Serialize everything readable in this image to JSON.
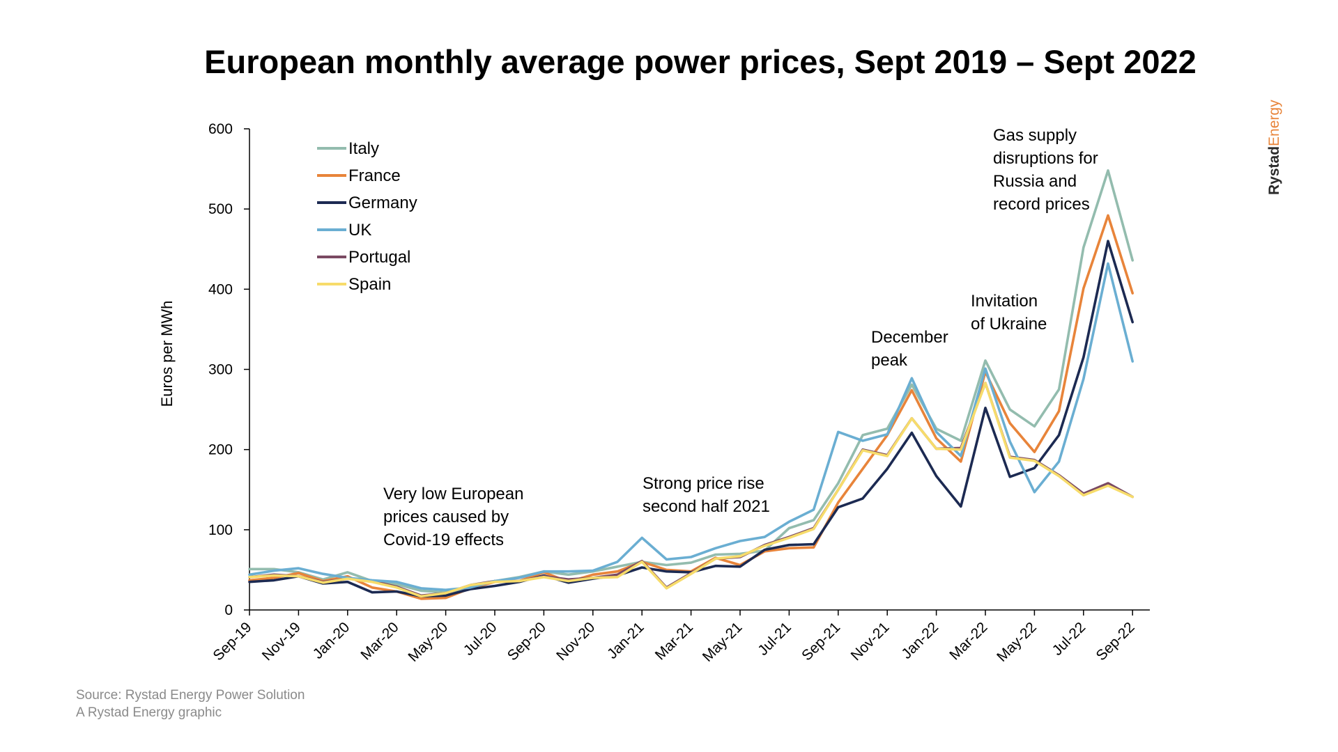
{
  "chart_data": {
    "type": "line",
    "title": "European monthly average power prices, Sept 2019 – Sept 2022",
    "ylabel": "Euros per MWh",
    "xlabel": "",
    "ylim": [
      0,
      600
    ],
    "yticks": [
      0,
      100,
      200,
      300,
      400,
      500,
      600
    ],
    "x": [
      "Sep-19",
      "Oct-19",
      "Nov-19",
      "Dec-19",
      "Jan-20",
      "Feb-20",
      "Mar-20",
      "Apr-20",
      "May-20",
      "Jun-20",
      "Jul-20",
      "Aug-20",
      "Sep-20",
      "Oct-20",
      "Nov-20",
      "Dec-20",
      "Jan-21",
      "Feb-21",
      "Mar-21",
      "Apr-21",
      "May-21",
      "Jun-21",
      "Jul-21",
      "Aug-21",
      "Sep-21",
      "Oct-21",
      "Nov-21",
      "Dec-21",
      "Jan-22",
      "Feb-22",
      "Mar-22",
      "Apr-22",
      "May-22",
      "Jun-22",
      "Jul-22",
      "Aug-22",
      "Sep-22"
    ],
    "xticks": [
      "Sep-19",
      "Nov-19",
      "Jan-20",
      "Mar-20",
      "May-20",
      "Jul-20",
      "Sep-20",
      "Nov-20",
      "Jan-21",
      "Mar-21",
      "May-21",
      "Jul-21",
      "Sep-21",
      "Nov-21",
      "Jan-22",
      "Mar-22",
      "May-22",
      "Jul-22",
      "Sep-22"
    ],
    "legend_position": "top-left",
    "grid": false,
    "series": [
      {
        "name": "Italy",
        "color": "#93bcae",
        "values": [
          51,
          51,
          47,
          38,
          47,
          36,
          32,
          24,
          22,
          28,
          36,
          41,
          48,
          44,
          48,
          54,
          60,
          56,
          59,
          69,
          70,
          74,
          102,
          112,
          158,
          218,
          226,
          281,
          226,
          211,
          311,
          250,
          229,
          275,
          452,
          548,
          436
        ]
      },
      {
        "name": "France",
        "color": "#e8843a",
        "values": [
          37,
          40,
          46,
          36,
          42,
          28,
          23,
          14,
          15,
          27,
          35,
          36,
          47,
          35,
          44,
          48,
          60,
          50,
          48,
          65,
          56,
          73,
          77,
          78,
          134,
          176,
          218,
          274,
          214,
          185,
          297,
          233,
          197,
          248,
          401,
          492,
          395
        ]
      },
      {
        "name": "Germany",
        "color": "#1c2a52",
        "values": [
          35,
          37,
          42,
          33,
          35,
          22,
          23,
          17,
          18,
          26,
          30,
          35,
          43,
          34,
          39,
          43,
          53,
          48,
          47,
          55,
          54,
          75,
          81,
          82,
          128,
          139,
          176,
          221,
          167,
          129,
          252,
          166,
          177,
          218,
          315,
          460,
          359
        ]
      },
      {
        "name": "UK",
        "color": "#6aaed2",
        "values": [
          44,
          49,
          52,
          45,
          40,
          37,
          35,
          27,
          25,
          28,
          36,
          40,
          48,
          48,
          49,
          60,
          90,
          63,
          66,
          77,
          86,
          91,
          110,
          125,
          222,
          211,
          219,
          289,
          222,
          192,
          301,
          210,
          147,
          185,
          288,
          432,
          310
        ]
      },
      {
        "name": "Portugal",
        "color": "#7a4962",
        "values": [
          41,
          44,
          42,
          35,
          39,
          36,
          29,
          18,
          21,
          31,
          36,
          36,
          42,
          38,
          40,
          44,
          61,
          28,
          46,
          64,
          66,
          81,
          91,
          102,
          150,
          200,
          193,
          239,
          201,
          202,
          283,
          191,
          187,
          168,
          145,
          158,
          141
        ]
      },
      {
        "name": "Spain",
        "color": "#f7dc6b",
        "values": [
          41,
          43,
          42,
          34,
          39,
          35,
          28,
          17,
          21,
          31,
          35,
          36,
          41,
          36,
          40,
          41,
          60,
          27,
          45,
          64,
          67,
          80,
          90,
          101,
          150,
          199,
          192,
          239,
          201,
          200,
          283,
          190,
          186,
          167,
          143,
          155,
          141
        ]
      }
    ],
    "annotations": [
      {
        "lines": [
          "Very low European",
          "prices caused by",
          "Covid-19 effects"
        ]
      },
      {
        "lines": [
          "Strong price rise",
          "second half 2021"
        ]
      },
      {
        "lines": [
          "December",
          "peak"
        ]
      },
      {
        "lines": [
          "Invitation",
          "of Ukraine"
        ]
      },
      {
        "lines": [
          "Gas supply",
          "disruptions for",
          "Russia and",
          "record prices"
        ]
      }
    ]
  },
  "footer": {
    "source": "Source: Rystad Energy Power Solution",
    "credit": "A Rystad Energy graphic"
  },
  "brand": {
    "part1": "Rystad",
    "part2": "Energy"
  }
}
